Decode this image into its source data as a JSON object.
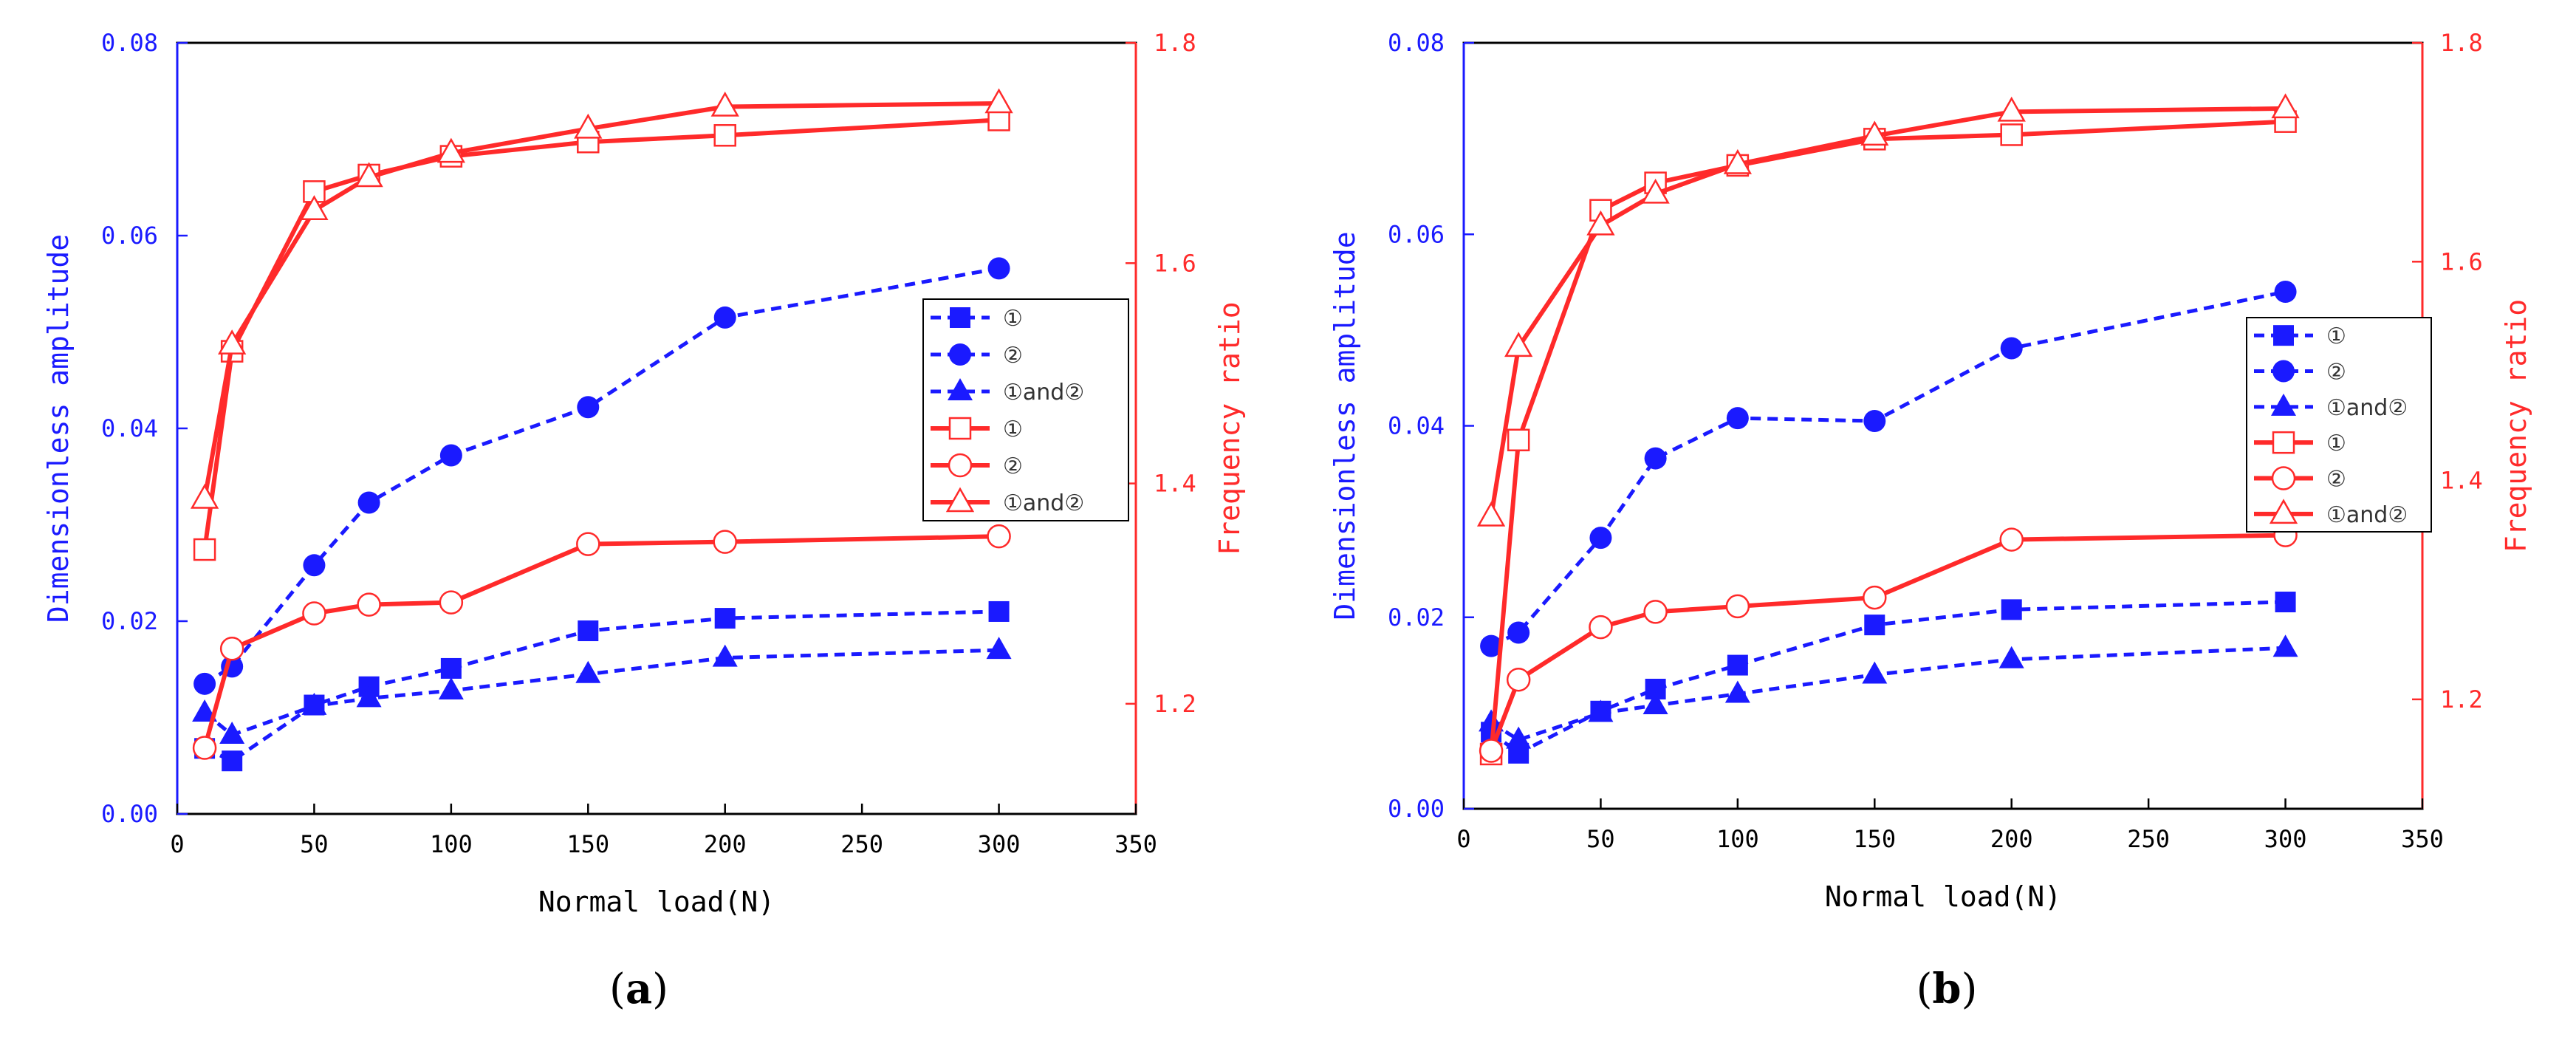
{
  "colors": {
    "left_axis": "#1a1aff",
    "right_axis": "#ff2a2a",
    "frame": "#000000"
  },
  "legend": {
    "blue_labels": [
      "①",
      "②",
      "①and②"
    ],
    "red_labels": [
      "①",
      "②",
      "①and②"
    ]
  },
  "chart_data": [
    {
      "type": "line",
      "panel_label_parts": [
        "(",
        "a",
        ")"
      ],
      "xlabel": "Normal load(N)",
      "ylabel_left": "Dimensionless amplitude",
      "ylabel_right": "Frequency ratio",
      "xlim": [
        0,
        350
      ],
      "ylim_left": [
        0,
        0.08
      ],
      "ylim_right": [
        1.1,
        1.8
      ],
      "x_ticks": [
        "0",
        "50",
        "100",
        "150",
        "200",
        "250",
        "300",
        "350"
      ],
      "y_left_ticks": [
        "0.00",
        "0.02",
        "0.04",
        "0.06",
        "0.08"
      ],
      "y_right_ticks": [
        "1.2",
        "1.4",
        "1.6",
        "1.8"
      ],
      "x": [
        10,
        20,
        50,
        70,
        100,
        150,
        200,
        300
      ],
      "series": [
        {
          "name": "①",
          "axis": "left",
          "marker": "square",
          "style": "dashed",
          "values": [
            0.0068,
            0.0055,
            0.0113,
            0.0132,
            0.0151,
            0.019,
            0.0203,
            0.021
          ]
        },
        {
          "name": "②",
          "axis": "left",
          "marker": "circle",
          "style": "dashed",
          "values": [
            0.0135,
            0.0153,
            0.0258,
            0.0323,
            0.0372,
            0.0422,
            0.0515,
            0.0566
          ]
        },
        {
          "name": "①and②",
          "axis": "left",
          "marker": "triangle",
          "style": "dashed",
          "values": [
            0.0105,
            0.0082,
            0.0112,
            0.012,
            0.0128,
            0.0145,
            0.0162,
            0.017
          ]
        },
        {
          "name": "①",
          "axis": "right",
          "marker": "square-open",
          "style": "solid",
          "values": [
            1.34,
            1.52,
            1.665,
            1.68,
            1.697,
            1.71,
            1.716,
            1.73
          ]
        },
        {
          "name": "②",
          "axis": "right",
          "marker": "circle-open",
          "style": "solid",
          "values": [
            1.16,
            1.25,
            1.282,
            1.29,
            1.292,
            1.345,
            1.347,
            1.352
          ]
        },
        {
          "name": "①and②",
          "axis": "right",
          "marker": "triangle-open",
          "style": "solid",
          "values": [
            1.386,
            1.526,
            1.648,
            1.678,
            1.7,
            1.722,
            1.742,
            1.745
          ]
        }
      ]
    },
    {
      "type": "line",
      "panel_label_parts": [
        "(",
        "b",
        ")"
      ],
      "xlabel": "Normal load(N)",
      "ylabel_left": "Dimensionless amplitude",
      "ylabel_right": "Frequency ratio",
      "xlim": [
        0,
        350
      ],
      "ylim_left": [
        0,
        0.08
      ],
      "ylim_right": [
        1.1,
        1.8
      ],
      "x_ticks": [
        "0",
        "50",
        "100",
        "150",
        "200",
        "250",
        "300",
        "350"
      ],
      "y_left_ticks": [
        "0.00",
        "0.02",
        "0.04",
        "0.06",
        "0.08"
      ],
      "y_right_ticks": [
        "1.2",
        "1.4",
        "1.6",
        "1.8"
      ],
      "x": [
        10,
        20,
        50,
        70,
        100,
        150,
        200,
        300
      ],
      "series": [
        {
          "name": "①",
          "axis": "left",
          "marker": "square",
          "style": "dashed",
          "values": [
            0.008,
            0.0058,
            0.0102,
            0.0125,
            0.015,
            0.0192,
            0.0208,
            0.0216
          ]
        },
        {
          "name": "②",
          "axis": "left",
          "marker": "circle",
          "style": "dashed",
          "values": [
            0.017,
            0.0184,
            0.0283,
            0.0366,
            0.0408,
            0.0405,
            0.0481,
            0.054
          ]
        },
        {
          "name": "①and②",
          "axis": "left",
          "marker": "triangle",
          "style": "dashed",
          "values": [
            0.009,
            0.0072,
            0.01,
            0.0108,
            0.012,
            0.014,
            0.0156,
            0.0168
          ]
        },
        {
          "name": "①",
          "axis": "right",
          "marker": "square-open",
          "style": "solid",
          "values": [
            1.15,
            1.437,
            1.647,
            1.672,
            1.688,
            1.712,
            1.716,
            1.728
          ]
        },
        {
          "name": "②",
          "axis": "right",
          "marker": "circle-open",
          "style": "solid",
          "values": [
            1.153,
            1.218,
            1.266,
            1.28,
            1.285,
            1.293,
            1.346,
            1.35
          ]
        },
        {
          "name": "①and②",
          "axis": "right",
          "marker": "triangle-open",
          "style": "solid",
          "values": [
            1.367,
            1.522,
            1.633,
            1.662,
            1.689,
            1.715,
            1.737,
            1.74
          ]
        }
      ]
    }
  ]
}
